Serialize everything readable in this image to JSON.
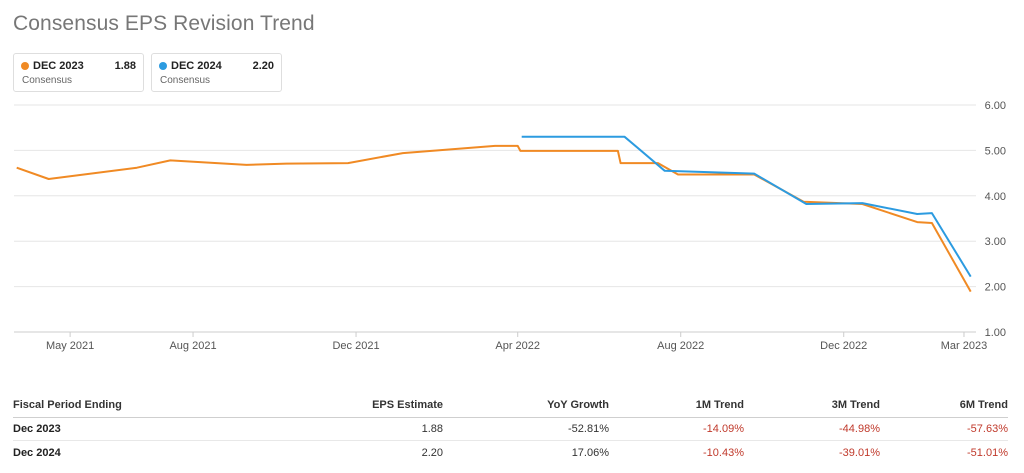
{
  "title": "Consensus EPS Revision Trend",
  "legend": [
    {
      "name": "DEC 2023",
      "value": "1.88",
      "sub": "Consensus",
      "color": "#f08a24"
    },
    {
      "name": "DEC 2024",
      "value": "2.20",
      "sub": "Consensus",
      "color": "#2c9be0"
    }
  ],
  "chart_data": {
    "type": "line",
    "title": "Consensus EPS Revision Trend",
    "xlabel": "",
    "ylabel": "",
    "x_range": [
      "2021-03-20",
      "2023-03-10"
    ],
    "ylim": [
      1.0,
      6.0
    ],
    "y_ticks": [
      "1.00",
      "2.00",
      "3.00",
      "4.00",
      "5.00",
      "6.00"
    ],
    "x_ticks": [
      {
        "label": "May 2021",
        "date": "2021-05-01"
      },
      {
        "label": "Aug 2021",
        "date": "2021-08-01"
      },
      {
        "label": "Dec 2021",
        "date": "2021-12-01"
      },
      {
        "label": "Apr 2022",
        "date": "2022-04-01"
      },
      {
        "label": "Aug 2022",
        "date": "2022-08-01"
      },
      {
        "label": "Dec 2022",
        "date": "2022-12-01"
      },
      {
        "label": "Mar 2023",
        "date": "2023-03-01"
      }
    ],
    "grid": true,
    "series": [
      {
        "name": "DEC 2023",
        "color": "#f08a24",
        "points": [
          [
            "2021-03-22",
            4.62
          ],
          [
            "2021-04-15",
            4.37
          ],
          [
            "2021-06-20",
            4.62
          ],
          [
            "2021-07-15",
            4.78
          ],
          [
            "2021-09-10",
            4.68
          ],
          [
            "2021-10-10",
            4.71
          ],
          [
            "2021-11-25",
            4.72
          ],
          [
            "2022-01-05",
            4.94
          ],
          [
            "2022-03-15",
            5.1
          ],
          [
            "2022-04-01",
            5.1
          ],
          [
            "2022-04-03",
            4.99
          ],
          [
            "2022-06-15",
            4.99
          ],
          [
            "2022-06-17",
            4.72
          ],
          [
            "2022-07-15",
            4.72
          ],
          [
            "2022-07-30",
            4.47
          ],
          [
            "2022-09-25",
            4.47
          ],
          [
            "2022-11-01",
            3.87
          ],
          [
            "2022-12-15",
            3.82
          ],
          [
            "2023-01-25",
            3.42
          ],
          [
            "2023-02-05",
            3.4
          ],
          [
            "2023-03-06",
            1.89
          ]
        ]
      },
      {
        "name": "DEC 2024",
        "color": "#2c9be0",
        "points": [
          [
            "2022-04-04",
            5.3
          ],
          [
            "2022-06-20",
            5.3
          ],
          [
            "2022-07-20",
            4.55
          ],
          [
            "2022-09-25",
            4.49
          ],
          [
            "2022-11-03",
            3.82
          ],
          [
            "2022-12-15",
            3.84
          ],
          [
            "2023-01-25",
            3.6
          ],
          [
            "2023-02-05",
            3.62
          ],
          [
            "2023-03-06",
            2.22
          ]
        ]
      }
    ]
  },
  "table": {
    "headers": [
      "Fiscal Period Ending",
      "EPS Estimate",
      "YoY Growth",
      "1M Trend",
      "3M Trend",
      "6M Trend"
    ],
    "rows": [
      {
        "period": "Dec 2023",
        "eps": "1.88",
        "yoy": "-52.81%",
        "m1": "-14.09%",
        "m3": "-44.98%",
        "m6": "-57.63%"
      },
      {
        "period": "Dec 2024",
        "eps": "2.20",
        "yoy": "17.06%",
        "m1": "-10.43%",
        "m3": "-39.01%",
        "m6": "-51.01%"
      }
    ]
  }
}
